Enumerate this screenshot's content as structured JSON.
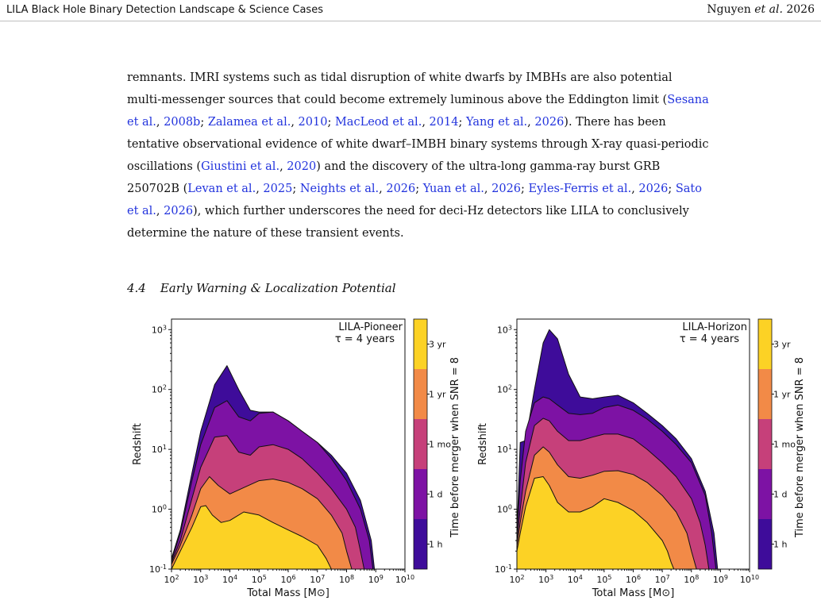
{
  "header": {
    "title": "LILA Black Hole Binary Detection Landscape & Science Cases",
    "authors": "Nguyen",
    "etal": "et al.",
    "year": "2026"
  },
  "body": {
    "lines": [
      [
        {
          "t": "remnants. IMRI systems such as tidal disruption of white dwarfs by IMBHs are also potential"
        }
      ],
      [
        {
          "t": "multi-messenger sources that could become extremely luminous above the Eddington limit ("
        },
        {
          "t": "Sesana",
          "c": 1
        }
      ],
      [
        {
          "t": "et al.",
          "c": 1
        },
        {
          "t": ", "
        },
        {
          "t": "2008b",
          "c": 1
        },
        {
          "t": "; "
        },
        {
          "t": "Zalamea et al.",
          "c": 1
        },
        {
          "t": ", "
        },
        {
          "t": "2010",
          "c": 1
        },
        {
          "t": "; "
        },
        {
          "t": "MacLeod et al.",
          "c": 1
        },
        {
          "t": ", "
        },
        {
          "t": "2014",
          "c": 1
        },
        {
          "t": "; "
        },
        {
          "t": "Yang et al.",
          "c": 1
        },
        {
          "t": ", "
        },
        {
          "t": "2026",
          "c": 1
        },
        {
          "t": "). There has been"
        }
      ],
      [
        {
          "t": "tentative observational evidence of white dwarf–IMBH binary systems through X-ray quasi-periodic"
        }
      ],
      [
        {
          "t": "oscillations ("
        },
        {
          "t": "Giustini et al.",
          "c": 1
        },
        {
          "t": ", "
        },
        {
          "t": "2020",
          "c": 1
        },
        {
          "t": ") and the discovery of the ultra-long gamma-ray burst GRB"
        }
      ],
      [
        {
          "t": "250702B ("
        },
        {
          "t": "Levan et al.",
          "c": 1
        },
        {
          "t": ", "
        },
        {
          "t": "2025",
          "c": 1
        },
        {
          "t": "; "
        },
        {
          "t": "Neights et al.",
          "c": 1
        },
        {
          "t": ", "
        },
        {
          "t": "2026",
          "c": 1
        },
        {
          "t": "; "
        },
        {
          "t": "Yuan et al.",
          "c": 1
        },
        {
          "t": ", "
        },
        {
          "t": "2026",
          "c": 1
        },
        {
          "t": "; "
        },
        {
          "t": "Eyles-Ferris et al.",
          "c": 1
        },
        {
          "t": ", "
        },
        {
          "t": "2026",
          "c": 1
        },
        {
          "t": "; "
        },
        {
          "t": "Sato",
          "c": 1
        }
      ],
      [
        {
          "t": "et al.",
          "c": 1
        },
        {
          "t": ", "
        },
        {
          "t": "2026",
          "c": 1
        },
        {
          "t": "), which further underscores the need for deci-Hz detectors like LILA to conclusively"
        }
      ],
      [
        {
          "t": "determine the nature of these transient events."
        }
      ]
    ]
  },
  "section": {
    "number": "4.4",
    "title": "Early Warning & Localization Potential"
  },
  "colors": {
    "text": "#111111",
    "cite": "#2233dd",
    "band_1h": "#3e0c9a",
    "band_1d": "#7d12a4",
    "band_1mo": "#c6407a",
    "band_1yr": "#f28a47",
    "band_3yr": "#fcd225"
  },
  "chart_data": [
    {
      "type": "area",
      "title": "LILA-Pioneer",
      "subtitle": "τ = 4 years",
      "xlabel": "Total Mass [M⊙]",
      "ylabel": "Redshift",
      "xscale": "log",
      "yscale": "log",
      "xlim": [
        100,
        10000000000
      ],
      "ylim": [
        0.1,
        1500
      ],
      "x_ticks": [
        "10^2",
        "10^3",
        "10^4",
        "10^5",
        "10^6",
        "10^7",
        "10^8",
        "10^9",
        "10^10"
      ],
      "y_ticks": [
        "10^-1",
        "10^0",
        "10^1",
        "10^2",
        "10^3"
      ],
      "colorbar": {
        "label": "Time before merger when SNR = 8",
        "ticks": [
          "1 h",
          "1 d",
          "1 mo",
          "1 yr",
          "3 yr"
        ]
      },
      "series": [
        {
          "name": "1 h",
          "x": [
            100,
            200,
            500,
            1000,
            3000,
            8000,
            20000,
            50000,
            100000,
            300000,
            1000000,
            3000000,
            10000000,
            30000000,
            100000000,
            300000000,
            700000000,
            900000000
          ],
          "y": [
            0.15,
            0.45,
            4,
            20,
            120,
            250,
            100,
            45,
            42,
            42,
            30,
            20,
            13,
            8,
            4,
            1.4,
            0.3,
            0.1
          ]
        },
        {
          "name": "1 d",
          "x": [
            100,
            200,
            500,
            1000,
            3000,
            8000,
            20000,
            50000,
            100000,
            300000,
            1000000,
            3000000,
            10000000,
            30000000,
            100000000,
            300000000,
            600000000,
            800000000
          ],
          "y": [
            0.14,
            0.4,
            3,
            12,
            50,
            65,
            35,
            30,
            40,
            42,
            30,
            20,
            13,
            7,
            3,
            1,
            0.3,
            0.1
          ]
        },
        {
          "name": "1 mo",
          "x": [
            100,
            200,
            500,
            1000,
            3000,
            8000,
            20000,
            50000,
            100000,
            300000,
            1000000,
            3000000,
            10000000,
            30000000,
            100000000,
            200000000,
            300000000,
            400000000
          ],
          "y": [
            0.13,
            0.3,
            1.5,
            5,
            16,
            17,
            9,
            8,
            11,
            12,
            10,
            7,
            4,
            2.2,
            1,
            0.5,
            0.2,
            0.1
          ]
        },
        {
          "name": "1 yr",
          "x": [
            100,
            200,
            500,
            1000,
            2000,
            4000,
            10000,
            30000,
            100000,
            300000,
            1000000,
            3000000,
            10000000,
            30000000,
            70000000,
            100000000,
            150000000
          ],
          "y": [
            0.12,
            0.25,
            0.8,
            2.2,
            3.5,
            2.5,
            1.8,
            2.3,
            3,
            3.2,
            2.8,
            2.2,
            1.5,
            0.8,
            0.4,
            0.2,
            0.1
          ]
        },
        {
          "name": "3 yr",
          "x": [
            100,
            200,
            500,
            1000,
            1500,
            2500,
            5000,
            10000,
            30000,
            100000,
            300000,
            1000000,
            3000000,
            10000000,
            20000000,
            30000000
          ],
          "y": [
            0.1,
            0.2,
            0.5,
            1.1,
            1.15,
            0.8,
            0.6,
            0.65,
            0.9,
            0.8,
            0.6,
            0.45,
            0.35,
            0.25,
            0.15,
            0.1
          ]
        }
      ]
    },
    {
      "type": "area",
      "title": "LILA-Horizon",
      "subtitle": "τ = 4 years",
      "xlabel": "Total Mass [M⊙]",
      "ylabel": "Redshift",
      "xscale": "log",
      "yscale": "log",
      "xlim": [
        100,
        10000000000
      ],
      "ylim": [
        0.1,
        1500
      ],
      "x_ticks": [
        "10^2",
        "10^3",
        "10^4",
        "10^5",
        "10^6",
        "10^7",
        "10^8",
        "10^9",
        "10^10"
      ],
      "y_ticks": [
        "10^-1",
        "10^0",
        "10^1",
        "10^2",
        "10^3"
      ],
      "colorbar": {
        "label": "Time before merger when SNR = 8",
        "ticks": [
          "1 h",
          "1 d",
          "1 mo",
          "1 yr",
          "3 yr"
        ]
      },
      "series": [
        {
          "name": "1 h",
          "x": [
            100,
            130,
            200,
            400,
            800,
            1300,
            2500,
            6000,
            15000,
            40000,
            100000,
            300000,
            1000000,
            3000000,
            10000000,
            30000000,
            100000000,
            300000000,
            600000000,
            800000000
          ],
          "y": [
            0.4,
            13,
            14,
            100,
            600,
            1000,
            700,
            180,
            75,
            70,
            75,
            80,
            60,
            40,
            25,
            15,
            7,
            2,
            0.4,
            0.1
          ]
        },
        {
          "name": "1 d",
          "x": [
            100,
            130,
            200,
            400,
            800,
            1300,
            2500,
            6000,
            15000,
            40000,
            100000,
            300000,
            1000000,
            3000000,
            10000000,
            30000000,
            100000000,
            300000000,
            500000000,
            700000000
          ],
          "y": [
            0.35,
            3,
            20,
            60,
            75,
            70,
            55,
            40,
            38,
            40,
            50,
            55,
            45,
            32,
            20,
            12,
            6,
            1.7,
            0.4,
            0.1
          ]
        },
        {
          "name": "1 mo",
          "x": [
            100,
            130,
            200,
            400,
            800,
            1300,
            2500,
            6000,
            15000,
            40000,
            100000,
            300000,
            1000000,
            3000000,
            10000000,
            30000000,
            100000000,
            200000000,
            300000000,
            400000000
          ],
          "y": [
            0.3,
            1,
            6,
            25,
            33,
            30,
            20,
            14,
            14,
            16,
            18,
            18,
            15,
            10,
            6,
            3.5,
            1.5,
            0.6,
            0.25,
            0.1
          ]
        },
        {
          "name": "1 yr",
          "x": [
            100,
            130,
            200,
            400,
            800,
            1300,
            2500,
            6000,
            15000,
            40000,
            100000,
            300000,
            1000000,
            3000000,
            10000000,
            30000000,
            70000000,
            100000000,
            150000000
          ],
          "y": [
            0.25,
            0.6,
            2,
            8,
            11,
            9,
            5.5,
            3.5,
            3.3,
            3.7,
            4.3,
            4.4,
            3.8,
            2.8,
            1.7,
            0.9,
            0.4,
            0.2,
            0.1
          ]
        },
        {
          "name": "3 yr",
          "x": [
            100,
            130,
            200,
            400,
            800,
            1300,
            2500,
            6000,
            15000,
            40000,
            100000,
            300000,
            1000000,
            3000000,
            10000000,
            15000000,
            20000000,
            25000000
          ],
          "y": [
            0.2,
            0.4,
            1.1,
            3.3,
            3.5,
            2.5,
            1.3,
            0.9,
            0.9,
            1.1,
            1.5,
            1.3,
            0.95,
            0.6,
            0.3,
            0.2,
            0.13,
            0.1
          ]
        }
      ]
    }
  ]
}
